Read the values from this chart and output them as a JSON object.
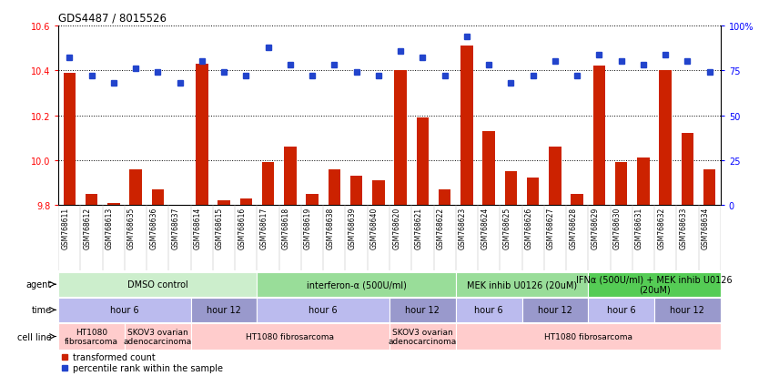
{
  "title": "GDS4487 / 8015526",
  "sample_ids": [
    "GSM768611",
    "GSM768612",
    "GSM768613",
    "GSM768635",
    "GSM768636",
    "GSM768637",
    "GSM768614",
    "GSM768615",
    "GSM768616",
    "GSM768617",
    "GSM768618",
    "GSM768619",
    "GSM768638",
    "GSM768639",
    "GSM768640",
    "GSM768620",
    "GSM768621",
    "GSM768622",
    "GSM768623",
    "GSM768624",
    "GSM768625",
    "GSM768626",
    "GSM768627",
    "GSM768628",
    "GSM768629",
    "GSM768630",
    "GSM768631",
    "GSM768632",
    "GSM768633",
    "GSM768634"
  ],
  "bar_values": [
    10.39,
    9.85,
    9.81,
    9.96,
    9.87,
    9.8,
    10.43,
    9.82,
    9.83,
    9.99,
    10.06,
    9.85,
    9.96,
    9.93,
    9.91,
    10.4,
    10.19,
    9.87,
    10.51,
    10.13,
    9.95,
    9.92,
    10.06,
    9.85,
    10.42,
    9.99,
    10.01,
    10.4,
    10.12,
    9.96
  ],
  "percentile_values": [
    82,
    72,
    68,
    76,
    74,
    68,
    80,
    74,
    72,
    88,
    78,
    72,
    78,
    74,
    72,
    86,
    82,
    72,
    94,
    78,
    68,
    72,
    80,
    72,
    84,
    80,
    78,
    84,
    80,
    74
  ],
  "ylim_left": [
    9.8,
    10.6
  ],
  "ylim_right": [
    0,
    100
  ],
  "yticks_left": [
    9.8,
    10.0,
    10.2,
    10.4,
    10.6
  ],
  "yticks_right": [
    0,
    25,
    50,
    75,
    100
  ],
  "ytick_labels_right": [
    "0",
    "25",
    "50",
    "75",
    "100%"
  ],
  "bar_color": "#cc2200",
  "dot_color": "#2244cc",
  "agent_row": {
    "labels": [
      "DMSO control",
      "interferon-α (500U/ml)",
      "MEK inhib U0126 (20uM)",
      "IFNα (500U/ml) + MEK inhib U0126\n(20uM)"
    ],
    "starts": [
      0,
      9,
      18,
      24
    ],
    "ends": [
      9,
      18,
      24,
      30
    ],
    "colors": [
      "#cceecc",
      "#99dd99",
      "#99dd99",
      "#55cc55"
    ]
  },
  "time_row": {
    "labels": [
      "hour 6",
      "hour 12",
      "hour 6",
      "hour 12",
      "hour 6",
      "hour 12",
      "hour 6",
      "hour 12"
    ],
    "starts": [
      0,
      6,
      9,
      15,
      18,
      21,
      24,
      27
    ],
    "ends": [
      6,
      9,
      15,
      18,
      21,
      24,
      27,
      30
    ],
    "colors": [
      "#bbbbee",
      "#9999cc",
      "#bbbbee",
      "#9999cc",
      "#bbbbee",
      "#9999cc",
      "#bbbbee",
      "#9999cc"
    ]
  },
  "cell_row": {
    "labels": [
      "HT1080\nfibrosarcoma",
      "SKOV3 ovarian\nadenocarcinoma",
      "HT1080 fibrosarcoma",
      "SKOV3 ovarian\nadenocarcinoma",
      "HT1080 fibrosarcoma"
    ],
    "starts": [
      0,
      3,
      6,
      15,
      18
    ],
    "ends": [
      3,
      6,
      15,
      18,
      30
    ],
    "colors": [
      "#ffcccc",
      "#ffcccc",
      "#ffcccc",
      "#ffcccc",
      "#ffcccc"
    ]
  },
  "legend_labels": [
    "transformed count",
    "percentile rank within the sample"
  ],
  "legend_colors": [
    "#cc2200",
    "#2244cc"
  ]
}
